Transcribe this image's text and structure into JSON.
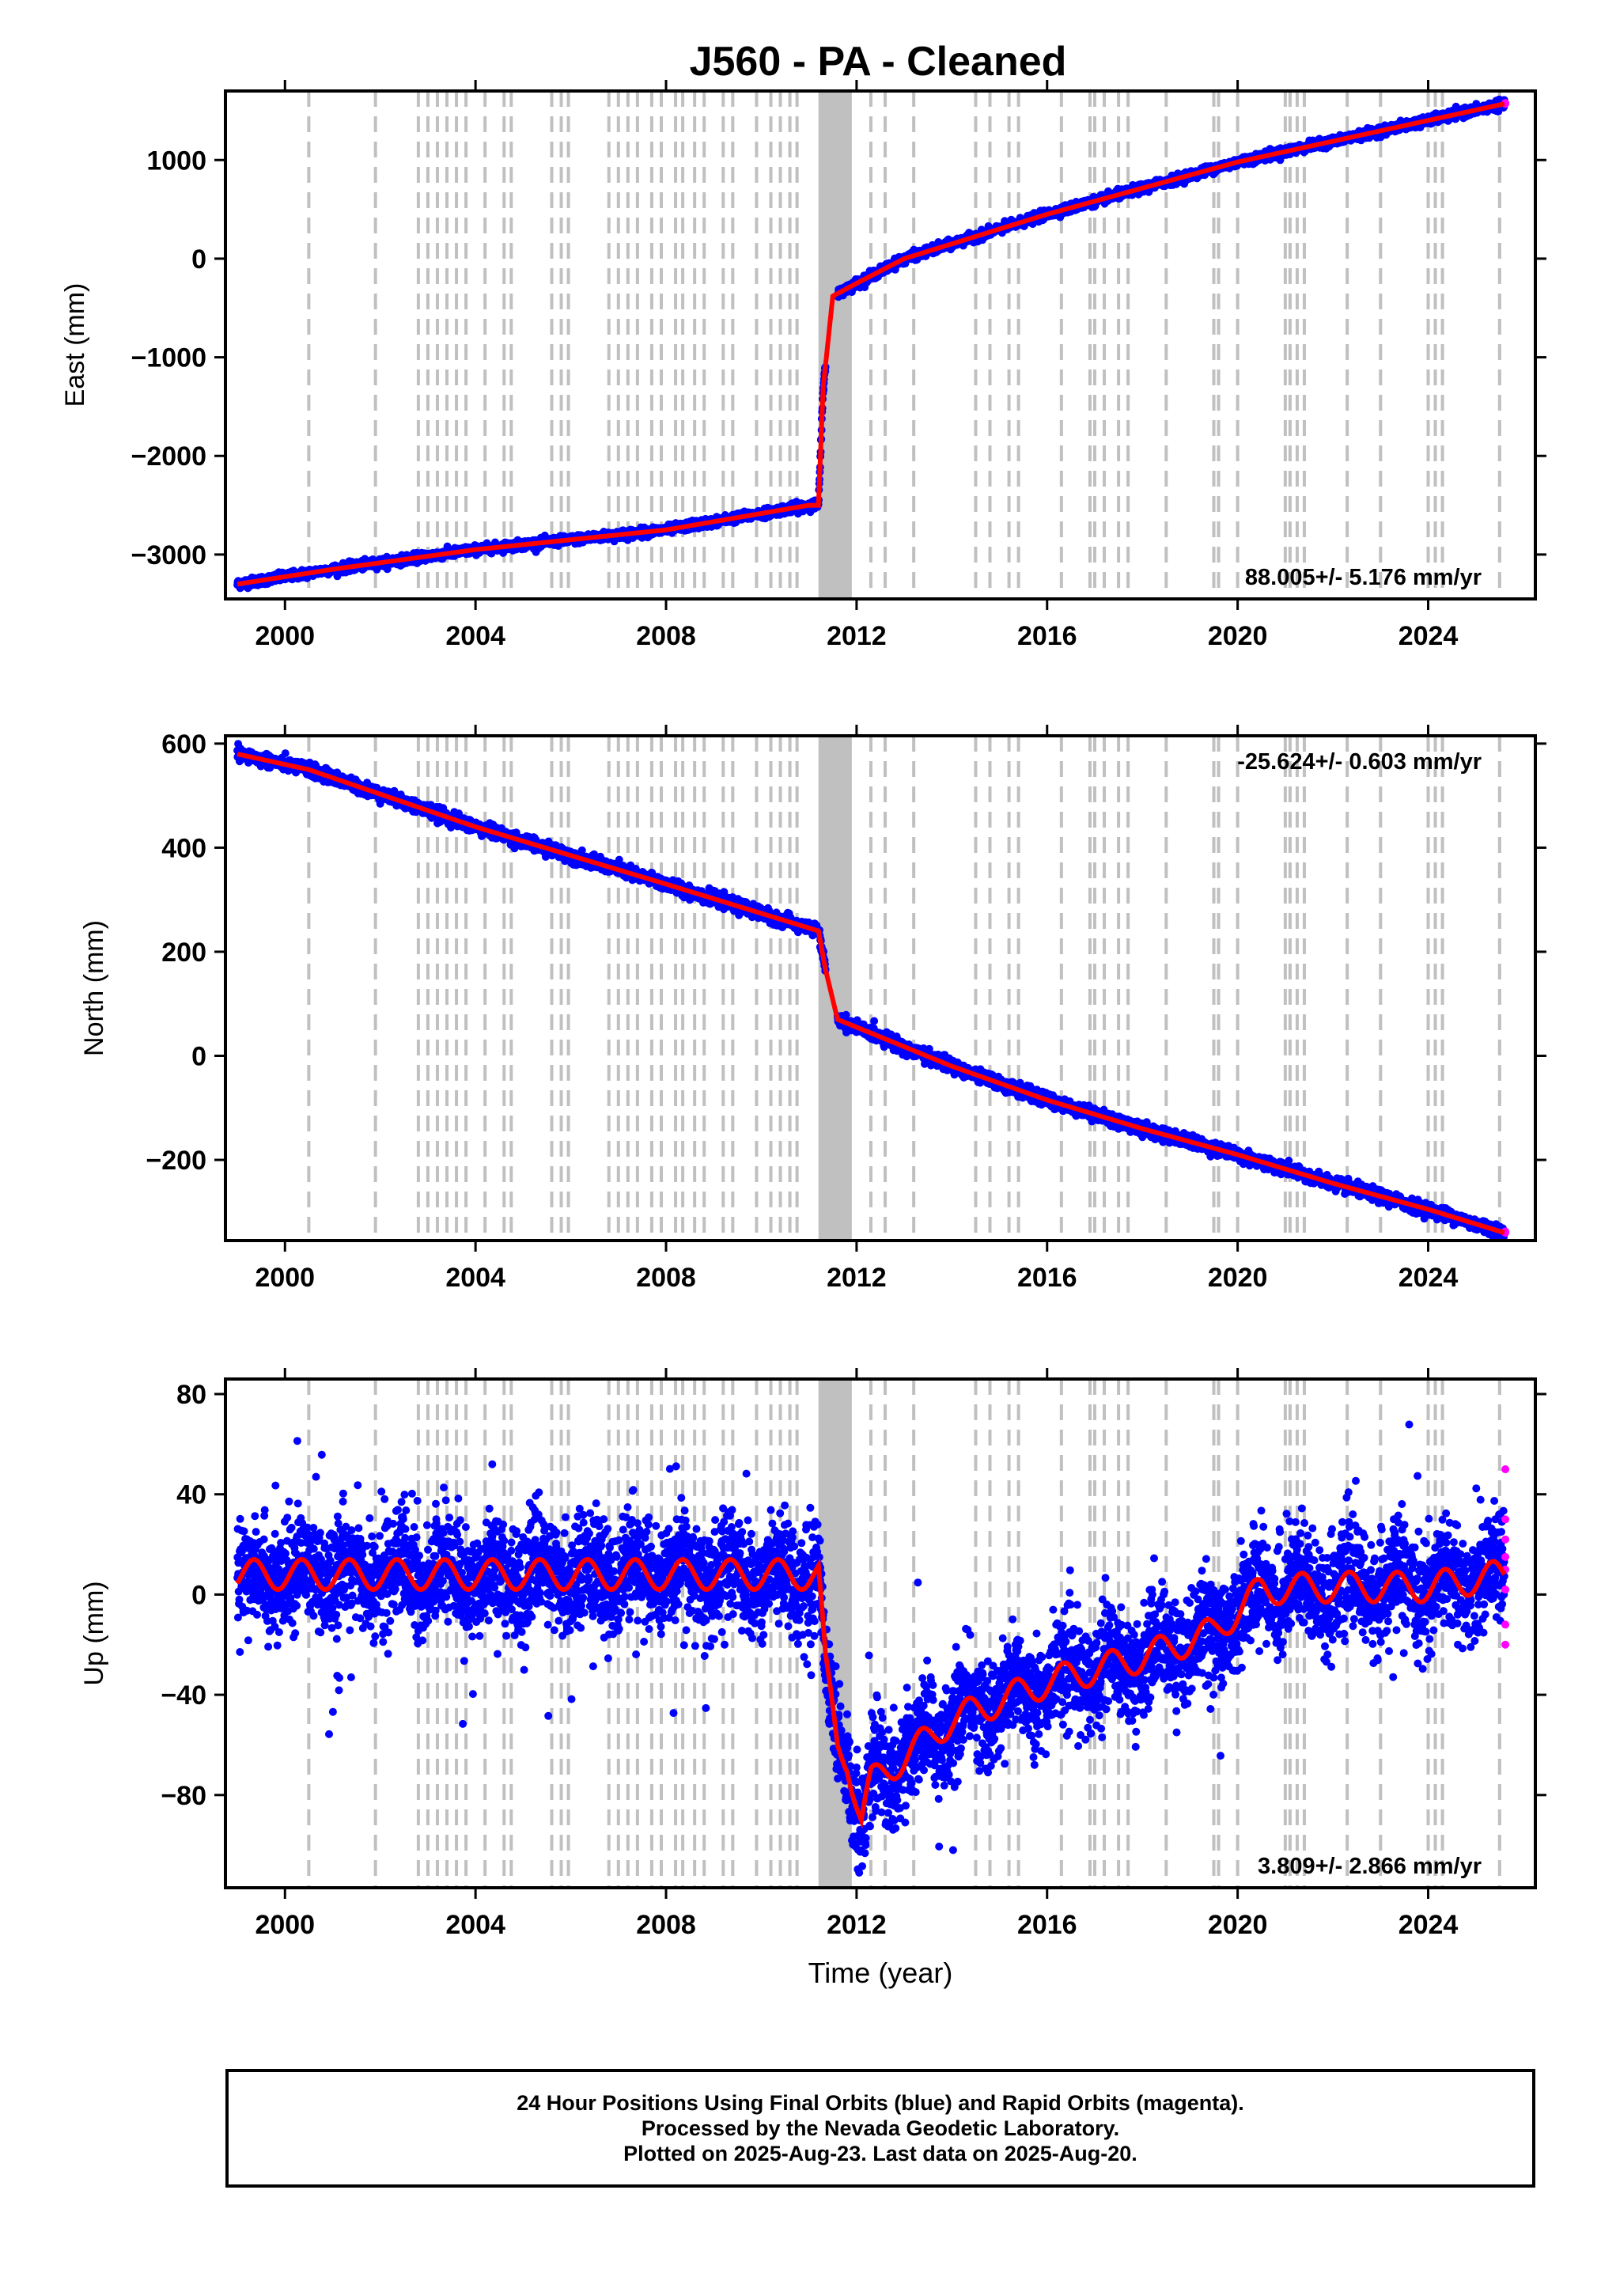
{
  "title": "J560  - PA - Cleaned",
  "time_label": "Time (year)",
  "footer": {
    "line1": "24 Hour Positions Using Final Orbits (blue) and Rapid Orbits (magenta).",
    "line2": "Processed by the Nevada Geodetic Laboratory.",
    "line3": "Plotted on 2025-Aug-23. Last data on 2025-Aug-20."
  },
  "colors": {
    "final_orbits": "#0000ff",
    "rapid_orbits": "#ff00ff",
    "model": "#ff0000",
    "equipment_change_lines": "#c0c0c0",
    "axes": "#000000"
  },
  "chart_data": [
    {
      "type": "scatter",
      "ylabel": "East (mm)",
      "xlabel": "",
      "xlim": [
        1998.75,
        2026.25
      ],
      "ylim": [
        -3450,
        1700
      ],
      "yticks": [
        1000,
        0,
        -1000,
        -2000,
        -3000
      ],
      "ytick_labels": [
        "1000",
        "0",
        "−1000",
        "−2000",
        "−3000"
      ],
      "xticks": [
        2000,
        2004,
        2008,
        2012,
        2016,
        2020,
        2024
      ],
      "velocity_label": "88.005+/- 5.176 mm/yr",
      "velocity_label_position": "bottom-right",
      "model": {
        "x": [
          1999.0,
          2001.0,
          2004.0,
          2008.0,
          2011.0,
          2011.2,
          2011.3,
          2011.5,
          2012.0,
          2013.0,
          2016.0,
          2020.0,
          2025.6
        ],
        "y": [
          -3300,
          -3150,
          -2950,
          -2750,
          -2500,
          -2500,
          -1300,
          -380,
          -250,
          0,
          450,
          980,
          1570
        ]
      },
      "noise": 22
    },
    {
      "type": "scatter",
      "ylabel": "North (mm)",
      "xlabel": "",
      "xlim": [
        1998.75,
        2026.25
      ],
      "ylim": [
        -355,
        615
      ],
      "yticks": [
        600,
        400,
        200,
        0,
        -200
      ],
      "ytick_labels": [
        "600",
        "400",
        "200",
        "0",
        "−200"
      ],
      "xticks": [
        2000,
        2004,
        2008,
        2012,
        2016,
        2020,
        2024
      ],
      "velocity_label": "-25.624+/- 0.603 mm/yr",
      "velocity_label_position": "top-right",
      "model": {
        "x": [
          1999.0,
          2000.5,
          2004.0,
          2008.0,
          2011.2,
          2011.35,
          2011.6,
          2012.0,
          2014.0,
          2016.0,
          2018.0,
          2020.0,
          2022.0,
          2024.0,
          2025.6
        ],
        "y": [
          580,
          550,
          440,
          330,
          240,
          165,
          70,
          55,
          -20,
          -85,
          -140,
          -190,
          -245,
          -295,
          -340
        ]
      },
      "noise": 6
    },
    {
      "type": "scatter",
      "ylabel": "Up (mm)",
      "xlabel": "Time (year)",
      "xlim": [
        1998.75,
        2026.25
      ],
      "ylim": [
        -117,
        86
      ],
      "yticks": [
        80,
        40,
        0,
        -40,
        -80
      ],
      "ytick_labels": [
        "80",
        "40",
        "0",
        "−40",
        "−80"
      ],
      "xticks": [
        2000,
        2004,
        2008,
        2012,
        2016,
        2020,
        2024
      ],
      "velocity_label": "3.809+/- 2.866 mm/yr",
      "velocity_label_position": "bottom-right",
      "model": {
        "x": [
          1999.0,
          2011.2,
          2011.35,
          2011.6,
          2011.8,
          2012.1,
          2012.3,
          2013.0,
          2014.0,
          2016.0,
          2018.0,
          2019.5,
          2020.5,
          2022.0,
          2024.0,
          2025.6
        ],
        "y": [
          8,
          8,
          -30,
          -60,
          -65,
          -90,
          -75,
          -65,
          -50,
          -35,
          -25,
          -15,
          2,
          3,
          3,
          8
        ]
      },
      "seasonal_amplitude": 6,
      "noise": 10,
      "rapid_points": {
        "x": [
          2025.62,
          2025.62,
          2025.62,
          2025.62,
          2025.62,
          2025.62,
          2025.62,
          2025.62
        ],
        "y": [
          50,
          30,
          22,
          15,
          10,
          2,
          -12,
          -20
        ]
      }
    }
  ],
  "equipment_change_years": [
    2000.5,
    2001.9,
    2002.8,
    2003.0,
    2003.2,
    2003.4,
    2003.6,
    2003.8,
    2004.2,
    2004.6,
    2004.75,
    2005.6,
    2005.8,
    2005.95,
    2006.8,
    2007.0,
    2007.2,
    2007.4,
    2007.7,
    2007.9,
    2008.2,
    2008.35,
    2008.6,
    2008.8,
    2009.2,
    2009.4,
    2009.9,
    2010.2,
    2010.4,
    2010.6,
    2010.75,
    2012.3,
    2012.6,
    2013.2,
    2014.5,
    2014.8,
    2015.2,
    2015.4,
    2016.3,
    2016.9,
    2017.0,
    2017.2,
    2017.5,
    2017.7,
    2018.5,
    2019.5,
    2019.6,
    2020.0,
    2021.0,
    2021.1,
    2021.25,
    2021.4,
    2022.3,
    2023.0,
    2024.0,
    2024.15,
    2024.3,
    2025.5
  ],
  "equipment_change_block": [
    2011.2,
    2011.9
  ]
}
